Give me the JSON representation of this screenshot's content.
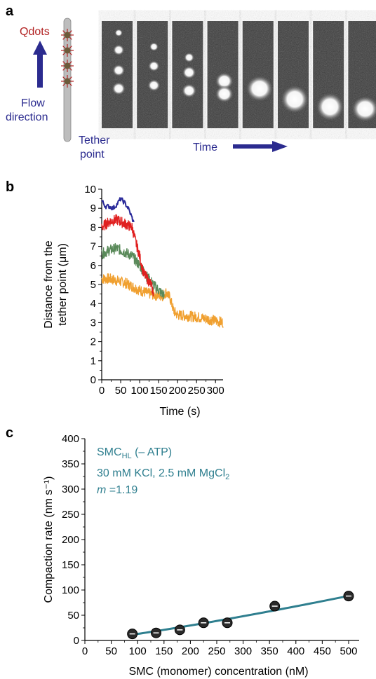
{
  "panel_a": {
    "letter": "a",
    "qdots_label": "Qdots",
    "flow_label_line1": "Flow",
    "flow_label_line2": "direction",
    "tether_label_line1": "Tether",
    "tether_label_line2": "point",
    "time_label": "Time",
    "colors": {
      "qdots": "#b22222",
      "flow": "#2b2b8f",
      "tether": "#2b2b8f",
      "time": "#2b2b8f",
      "rod": "#bdbdbd",
      "dot": "#6b5a3a"
    },
    "frames": [
      {
        "blobs": [
          {
            "y": 0.11,
            "r": 0.035
          },
          {
            "y": 0.27,
            "r": 0.05
          },
          {
            "y": 0.46,
            "r": 0.055
          },
          {
            "y": 0.63,
            "r": 0.06
          }
        ]
      },
      {
        "blobs": [
          {
            "y": 0.24,
            "r": 0.04
          },
          {
            "y": 0.42,
            "r": 0.05
          },
          {
            "y": 0.6,
            "r": 0.055
          }
        ]
      },
      {
        "blobs": [
          {
            "y": 0.34,
            "r": 0.045
          },
          {
            "y": 0.48,
            "r": 0.06
          },
          {
            "y": 0.65,
            "r": 0.065
          }
        ]
      },
      {
        "blobs": [
          {
            "y": 0.56,
            "r": 0.08
          },
          {
            "y": 0.68,
            "r": 0.08
          }
        ]
      },
      {
        "blobs": [
          {
            "y": 0.63,
            "r": 0.12
          }
        ]
      },
      {
        "blobs": [
          {
            "y": 0.73,
            "r": 0.13
          }
        ]
      },
      {
        "blobs": [
          {
            "y": 0.8,
            "r": 0.13
          }
        ]
      },
      {
        "blobs": [
          {
            "y": 0.82,
            "r": 0.12
          }
        ]
      }
    ]
  },
  "chart_data": [
    {
      "panel": "b",
      "type": "line",
      "xlabel": "Time (s)",
      "ylabel_line1": "Distance from the",
      "ylabel_line2": "tether point (μm)",
      "xlim": [
        0,
        320
      ],
      "ylim": [
        0,
        10
      ],
      "xticks": [
        0,
        50,
        100,
        150,
        200,
        250,
        300
      ],
      "yticks": [
        0,
        1,
        2,
        3,
        4,
        5,
        6,
        7,
        8,
        9,
        10
      ],
      "grid": false,
      "series": [
        {
          "color": "#f0a030",
          "points": [
            [
              0,
              5.3
            ],
            [
              20,
              5.3
            ],
            [
              40,
              5.2
            ],
            [
              60,
              5.1
            ],
            [
              80,
              4.9
            ],
            [
              100,
              4.7
            ],
            [
              120,
              4.55
            ],
            [
              140,
              4.45
            ],
            [
              160,
              4.4
            ],
            [
              170,
              4.6
            ],
            [
              180,
              4.3
            ],
            [
              190,
              3.6
            ],
            [
              200,
              3.4
            ],
            [
              250,
              3.3
            ],
            [
              300,
              3.1
            ],
            [
              320,
              3.0
            ]
          ]
        },
        {
          "color": "#5a8a5a",
          "points": [
            [
              0,
              6.6
            ],
            [
              20,
              6.8
            ],
            [
              40,
              6.9
            ],
            [
              60,
              6.7
            ],
            [
              80,
              6.5
            ],
            [
              100,
              6.0
            ],
            [
              120,
              5.4
            ],
            [
              140,
              4.9
            ],
            [
              150,
              4.7
            ],
            [
              160,
              4.5
            ],
            [
              165,
              4.4
            ]
          ]
        },
        {
          "color": "#e02020",
          "points": [
            [
              0,
              8.0
            ],
            [
              20,
              8.3
            ],
            [
              40,
              8.4
            ],
            [
              60,
              8.2
            ],
            [
              80,
              8.0
            ],
            [
              90,
              7.2
            ],
            [
              100,
              6.5
            ],
            [
              110,
              5.6
            ],
            [
              120,
              5.3
            ],
            [
              130,
              5.0
            ],
            [
              137,
              4.5
            ]
          ]
        },
        {
          "color": "#2a2a9a",
          "points": [
            [
              0,
              9.4
            ],
            [
              10,
              9.1
            ],
            [
              20,
              9.1
            ],
            [
              30,
              9.0
            ],
            [
              40,
              9.2
            ],
            [
              50,
              9.5
            ],
            [
              60,
              9.3
            ],
            [
              70,
              9.0
            ],
            [
              80,
              8.5
            ],
            [
              85,
              8.2
            ]
          ]
        }
      ]
    },
    {
      "panel": "c",
      "type": "scatter",
      "xlabel": "SMC (monomer) concentration (nM)",
      "ylabel": "Compaction rate (nm s⁻¹)",
      "xlim": [
        0,
        520
      ],
      "ylim": [
        0,
        400
      ],
      "xticks": [
        0,
        50,
        100,
        150,
        200,
        250,
        300,
        350,
        400,
        450,
        500
      ],
      "yticks": [
        0,
        50,
        100,
        150,
        200,
        250,
        300,
        350,
        400
      ],
      "grid": false,
      "annotation": {
        "line1_main": "SMC",
        "line1_sub": "HL",
        "line1_rest": " (– ATP)",
        "line2_main": "30 mM KCl, 2.5 mM MgCl",
        "line2_sub": "2",
        "line3_var": "m",
        "line3_rest": " =1.19",
        "color": "#2f7f8f"
      },
      "points": [
        {
          "x": 90,
          "y": 13
        },
        {
          "x": 135,
          "y": 15
        },
        {
          "x": 180,
          "y": 21
        },
        {
          "x": 225,
          "y": 35
        },
        {
          "x": 270,
          "y": 35
        },
        {
          "x": 360,
          "y": 68
        },
        {
          "x": 500,
          "y": 88
        }
      ],
      "fit": {
        "color": "#2f7f8f",
        "x_start": 90,
        "x_end": 505,
        "m": 1.19,
        "k": 0.0542
      }
    }
  ]
}
